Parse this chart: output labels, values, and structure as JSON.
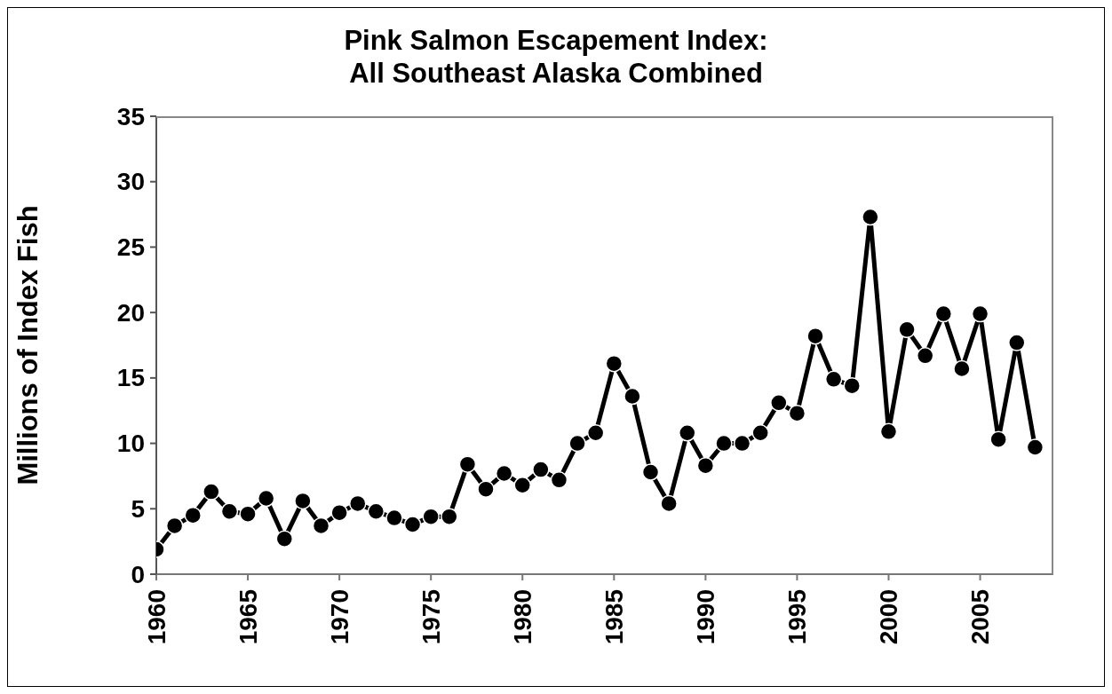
{
  "chart_data": {
    "type": "line",
    "title": "Pink Salmon Escapement Index:\nAll Southeast Alaska Combined",
    "ylabel": "Millions of Index Fish",
    "x": [
      1960,
      1961,
      1962,
      1963,
      1964,
      1965,
      1966,
      1967,
      1968,
      1969,
      1970,
      1971,
      1972,
      1973,
      1974,
      1975,
      1976,
      1977,
      1978,
      1979,
      1980,
      1981,
      1982,
      1983,
      1984,
      1985,
      1986,
      1987,
      1988,
      1989,
      1990,
      1991,
      1992,
      1993,
      1994,
      1995,
      1996,
      1997,
      1998,
      1999,
      2000,
      2001,
      2002,
      2003,
      2004,
      2005,
      2006,
      2007,
      2008
    ],
    "series": [
      {
        "color": "#000000",
        "values": [
          1.9,
          3.7,
          4.5,
          6.3,
          4.8,
          4.6,
          5.8,
          2.7,
          5.6,
          3.7,
          4.7,
          5.4,
          4.8,
          4.3,
          3.8,
          4.4,
          4.4,
          8.4,
          6.5,
          7.7,
          6.8,
          8.0,
          7.2,
          10.0,
          10.8,
          16.1,
          13.6,
          7.8,
          5.4,
          10.8,
          8.3,
          10.0,
          10.0,
          10.8,
          13.1,
          12.3,
          18.2,
          14.9,
          14.4,
          27.3,
          10.9,
          18.7,
          16.7,
          19.9,
          15.7,
          19.9,
          10.3,
          17.7,
          9.7
        ]
      }
    ],
    "xlim": [
      1960,
      2009
    ],
    "xticks": [
      1960,
      1965,
      1970,
      1975,
      1980,
      1985,
      1990,
      1995,
      2000,
      2005
    ],
    "ylim": [
      0,
      35
    ],
    "yticks": [
      0,
      5,
      10,
      15,
      20,
      25,
      30,
      35
    ],
    "grid": false,
    "legend": false,
    "marker": "circle",
    "line_style": "solid"
  }
}
